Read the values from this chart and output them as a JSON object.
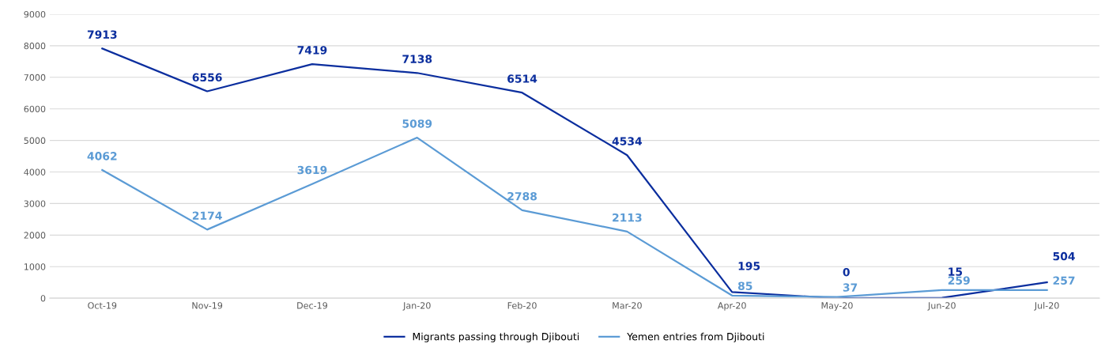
{
  "chart_data": {
    "type": "line",
    "categories": [
      "Oct-19",
      "Nov-19",
      "Dec-19",
      "Jan-20",
      "Feb-20",
      "Mar-20",
      "Apr-20",
      "May-20",
      "Jun-20",
      "Jul-20"
    ],
    "series": [
      {
        "name": "Migrants passing through Djibouti",
        "color": "#0b2e9e",
        "values": [
          7913,
          6556,
          7419,
          7138,
          6514,
          4534,
          195,
          0,
          15,
          504
        ]
      },
      {
        "name": "Yemen entries from Djibouti",
        "color": "#5b9bd5",
        "values": [
          4062,
          2174,
          3619,
          5089,
          2788,
          2113,
          85,
          37,
          259,
          257
        ]
      }
    ],
    "ylim": [
      0,
      9000
    ],
    "yticks": [
      0,
      1000,
      2000,
      3000,
      4000,
      5000,
      6000,
      7000,
      8000,
      9000
    ],
    "grid": "y",
    "legend": "bottom",
    "data_labels": true,
    "marker": "none",
    "line_style": "solid"
  }
}
